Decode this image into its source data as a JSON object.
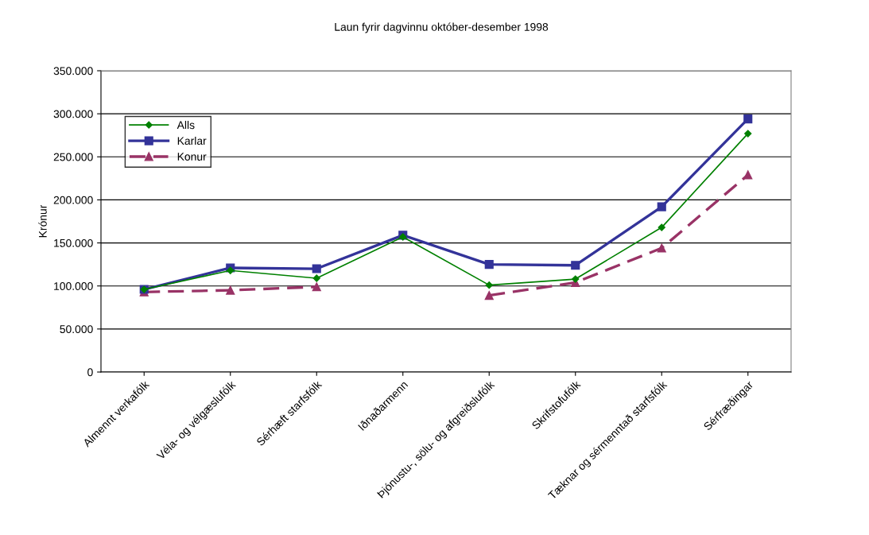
{
  "chart_data": {
    "type": "line",
    "title": "Laun fyrir dagvinnu október-desember 1998",
    "ylabel": "Krónur",
    "categories": [
      "Almennt verkafólk",
      "Véla- og vélgæslufólk",
      "Sérhæft starfsfólk",
      "Iðnaðarmenn",
      "Þjónustu-, sölu- og afgreiðslufólk",
      "Skrifstofufólk",
      "Tæknar og sérmenntað starfsfólk",
      "Sérfræðingar"
    ],
    "series": [
      {
        "name": "Alls",
        "color": "#008000",
        "marker": "diamond",
        "line_style": "solid",
        "values": [
          96000,
          118000,
          109000,
          157000,
          101000,
          108000,
          168000,
          277000
        ]
      },
      {
        "name": "Karlar",
        "color": "#333399",
        "marker": "square",
        "line_style": "solid",
        "values": [
          96000,
          121000,
          120000,
          159000,
          125000,
          124000,
          192000,
          294000
        ]
      },
      {
        "name": "Konur",
        "color": "#993366",
        "marker": "triangle",
        "line_style": "dashed",
        "values": [
          93000,
          95000,
          99000,
          null,
          89000,
          104000,
          144000,
          229000
        ]
      }
    ],
    "ylim": [
      0,
      350000
    ],
    "yticks": [
      0,
      {
        "value": 50000,
        "label": "50.000"
      },
      {
        "value": 100000,
        "label": "100.000"
      },
      {
        "value": 150000,
        "label": "150.000"
      },
      {
        "value": 200000,
        "label": "200.000"
      },
      {
        "value": 250000,
        "label": "250.000"
      },
      {
        "value": 300000,
        "label": "300.000"
      },
      {
        "value": 350000,
        "label": "350.000"
      }
    ],
    "grid": "y",
    "legend": "top left"
  }
}
